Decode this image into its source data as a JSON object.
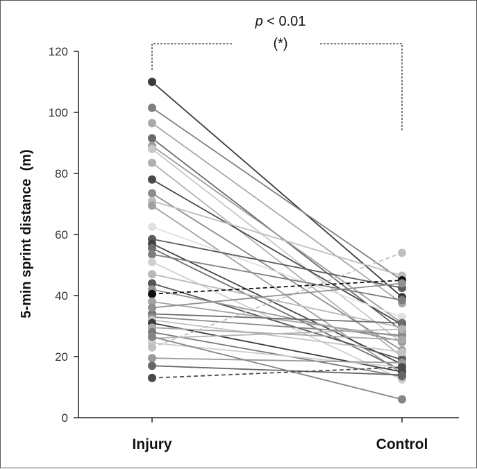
{
  "chart_data": {
    "type": "line",
    "title": "",
    "xlabel": "",
    "ylabel": "5-min sprint distance  (m)",
    "ylim": [
      0,
      120
    ],
    "yticks": [
      "0",
      "20",
      "40",
      "60",
      "80",
      "100",
      "120"
    ],
    "categories": [
      "Injury",
      "Control"
    ],
    "annotation": {
      "p_symbol": "p",
      "p_rest": " < 0.01",
      "star": "(*)"
    },
    "series": [
      {
        "name": "pair-01",
        "values": [
          110,
          39.5
        ],
        "gray": "#3a3a3a",
        "dashed": false
      },
      {
        "name": "pair-02",
        "values": [
          101.5,
          45
        ],
        "gray": "#808080",
        "dashed": false
      },
      {
        "name": "pair-03",
        "values": [
          96.5,
          37.5
        ],
        "gray": "#a8a8a8",
        "dashed": false
      },
      {
        "name": "pair-04",
        "values": [
          91.5,
          28.5
        ],
        "gray": "#6a6a6a",
        "dashed": false
      },
      {
        "name": "pair-05",
        "values": [
          89,
          31
        ],
        "gray": "#9c9c9c",
        "dashed": false
      },
      {
        "name": "pair-06",
        "values": [
          88,
          24.5
        ],
        "gray": "#c8c8c8",
        "dashed": false
      },
      {
        "name": "pair-07",
        "values": [
          83.5,
          20
        ],
        "gray": "#b0b0b0",
        "dashed": false
      },
      {
        "name": "pair-08",
        "values": [
          78,
          30.5
        ],
        "gray": "#4a4a4a",
        "dashed": false
      },
      {
        "name": "pair-09",
        "values": [
          73.5,
          22
        ],
        "gray": "#8c8c8c",
        "dashed": false
      },
      {
        "name": "pair-10",
        "values": [
          71,
          46.5
        ],
        "gray": "#bdbdbd",
        "dashed": false
      },
      {
        "name": "pair-11",
        "values": [
          69.5,
          14.5
        ],
        "gray": "#a0a0a0",
        "dashed": false
      },
      {
        "name": "pair-12",
        "values": [
          62.5,
          33
        ],
        "gray": "#e0e0e0",
        "dashed": false
      },
      {
        "name": "pair-13",
        "values": [
          58.5,
          42.5
        ],
        "gray": "#5c5c5c",
        "dashed": false
      },
      {
        "name": "pair-14",
        "values": [
          57,
          17.5
        ],
        "gray": "#444444",
        "dashed": false
      },
      {
        "name": "pair-15",
        "values": [
          55.5,
          15.5
        ],
        "gray": "#6f6f6f",
        "dashed": false
      },
      {
        "name": "pair-16",
        "values": [
          53.5,
          38.5
        ],
        "gray": "#7e7e7e",
        "dashed": false
      },
      {
        "name": "pair-17",
        "values": [
          51,
          12.5
        ],
        "gray": "#d0d0d0",
        "dashed": false
      },
      {
        "name": "pair-18",
        "values": [
          47,
          29.5
        ],
        "gray": "#b8b8b8",
        "dashed": false
      },
      {
        "name": "pair-19",
        "values": [
          44,
          19
        ],
        "gray": "#555555",
        "dashed": false
      },
      {
        "name": "pair-20",
        "values": [
          42,
          25
        ],
        "gray": "#949494",
        "dashed": false
      },
      {
        "name": "pair-21",
        "values": [
          40.5,
          45
        ],
        "gray": "#111111",
        "dashed": true
      },
      {
        "name": "pair-22",
        "values": [
          38,
          26.5
        ],
        "gray": "#a4a4a4",
        "dashed": false
      },
      {
        "name": "pair-23",
        "values": [
          34,
          31
        ],
        "gray": "#6c6c6c",
        "dashed": false
      },
      {
        "name": "pair-24",
        "values": [
          33,
          27
        ],
        "gray": "#8a8a8a",
        "dashed": false
      },
      {
        "name": "pair-25",
        "values": [
          32,
          21.5
        ],
        "gray": "#c4c4c4",
        "dashed": false
      },
      {
        "name": "pair-26",
        "values": [
          31,
          15
        ],
        "gray": "#3c3c3c",
        "dashed": false
      },
      {
        "name": "pair-27",
        "values": [
          29.5,
          25.5
        ],
        "gray": "#a8a8a8",
        "dashed": false
      },
      {
        "name": "pair-28",
        "values": [
          28,
          13.5
        ],
        "gray": "#7a7a7a",
        "dashed": false
      },
      {
        "name": "pair-29",
        "values": [
          26,
          29
        ],
        "gray": "#b4b4b4",
        "dashed": false
      },
      {
        "name": "pair-30",
        "values": [
          24.5,
          16.5
        ],
        "gray": "#cccccc",
        "dashed": false
      },
      {
        "name": "pair-31",
        "values": [
          23,
          54
        ],
        "gray": "#c0c0c0",
        "dashed": true
      },
      {
        "name": "pair-32",
        "values": [
          19.5,
          18
        ],
        "gray": "#9a9a9a",
        "dashed": false
      },
      {
        "name": "pair-33",
        "values": [
          17,
          14
        ],
        "gray": "#666666",
        "dashed": false
      },
      {
        "name": "pair-34",
        "values": [
          26.5,
          6
        ],
        "gray": "#858585",
        "dashed": false
      },
      {
        "name": "pair-35",
        "values": [
          13,
          16.5
        ],
        "gray": "#4a4a4a",
        "dashed": true
      },
      {
        "name": "pair-36",
        "values": [
          36,
          44
        ],
        "gray": "#909090",
        "dashed": false
      }
    ]
  }
}
